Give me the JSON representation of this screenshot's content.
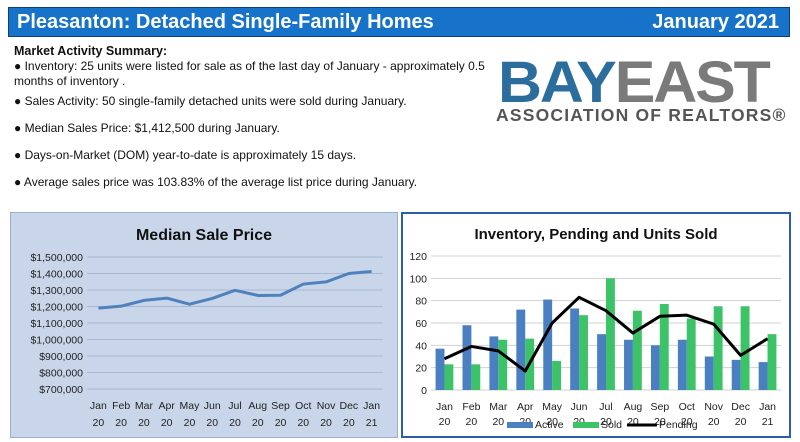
{
  "header": {
    "title": "Pleasanton: Detached Single-Family Homes",
    "date": "January 2021"
  },
  "summary": {
    "title": "Market Activity Summary:",
    "bullets": [
      "● Inventory: 25 units were listed for sale as of the last day of January - approximately 0.5 months of inventory .",
      "● Sales Activity: 50 single-family detached units were sold during January.",
      "● Median Sales Price: $1,412,500 during January.",
      "● Days-on-Market (DOM) year-to-date is approximately 15 days.",
      "● Average sales price was 103.83% of the average list price during January."
    ]
  },
  "logo": {
    "main_a": "BAY",
    "main_b": "EAST",
    "sub": "ASSOCIATION OF REALTORS®"
  },
  "chart_data": [
    {
      "type": "line",
      "title": "Median Sale Price",
      "categories": [
        [
          "Jan",
          "20"
        ],
        [
          "Feb",
          "20"
        ],
        [
          "Mar",
          "20"
        ],
        [
          "Apr",
          "20"
        ],
        [
          "May",
          "20"
        ],
        [
          "Jun",
          "20"
        ],
        [
          "Jul",
          "20"
        ],
        [
          "Aug",
          "20"
        ],
        [
          "Sep",
          "20"
        ],
        [
          "Oct",
          "20"
        ],
        [
          "Nov",
          "20"
        ],
        [
          "Dec",
          "20"
        ],
        [
          "Jan",
          "21"
        ]
      ],
      "values": [
        1190000,
        1202000,
        1237000,
        1251000,
        1214000,
        1249000,
        1298000,
        1267000,
        1268000,
        1336000,
        1349000,
        1400000,
        1412500
      ],
      "ylim": [
        700000,
        1500000
      ],
      "yticks": [
        "$700,000",
        "$800,000",
        "$900,000",
        "$1,000,000",
        "$1,100,000",
        "$1,200,000",
        "$1,300,000",
        "$1,400,000",
        "$1,500,000"
      ],
      "grid": true,
      "color": "#4f81bd"
    },
    {
      "type": "bar",
      "title": "Inventory, Pending and Units Sold",
      "categories": [
        [
          "Jan",
          "20"
        ],
        [
          "Feb",
          "20"
        ],
        [
          "Mar",
          "20"
        ],
        [
          "Apr",
          "20"
        ],
        [
          "May",
          "20"
        ],
        [
          "Jun",
          "20"
        ],
        [
          "Jul",
          "20"
        ],
        [
          "Aug",
          "20"
        ],
        [
          "Sep",
          "20"
        ],
        [
          "Oct",
          "20"
        ],
        [
          "Nov",
          "20"
        ],
        [
          "Dec",
          "20"
        ],
        [
          "Jan",
          "21"
        ]
      ],
      "series": [
        {
          "name": "Active",
          "type": "bar",
          "color": "#4a7fc1",
          "values": [
            37,
            58,
            48,
            72,
            81,
            73,
            50,
            45,
            40,
            45,
            30,
            27,
            25
          ]
        },
        {
          "name": "Sold",
          "type": "bar",
          "color": "#3cc267",
          "values": [
            23,
            23,
            45,
            46,
            26,
            67,
            100,
            71,
            77,
            64,
            75,
            75,
            50
          ]
        },
        {
          "name": "Pending",
          "type": "line",
          "color": "#000000",
          "values": [
            28,
            39,
            35,
            17,
            60,
            83,
            71,
            51,
            66,
            67,
            59,
            31,
            46
          ]
        }
      ],
      "ylim": [
        0,
        120
      ],
      "yticks": [
        "0",
        "20",
        "40",
        "60",
        "80",
        "100",
        "120"
      ],
      "grid": true,
      "legend": "bottom"
    }
  ]
}
